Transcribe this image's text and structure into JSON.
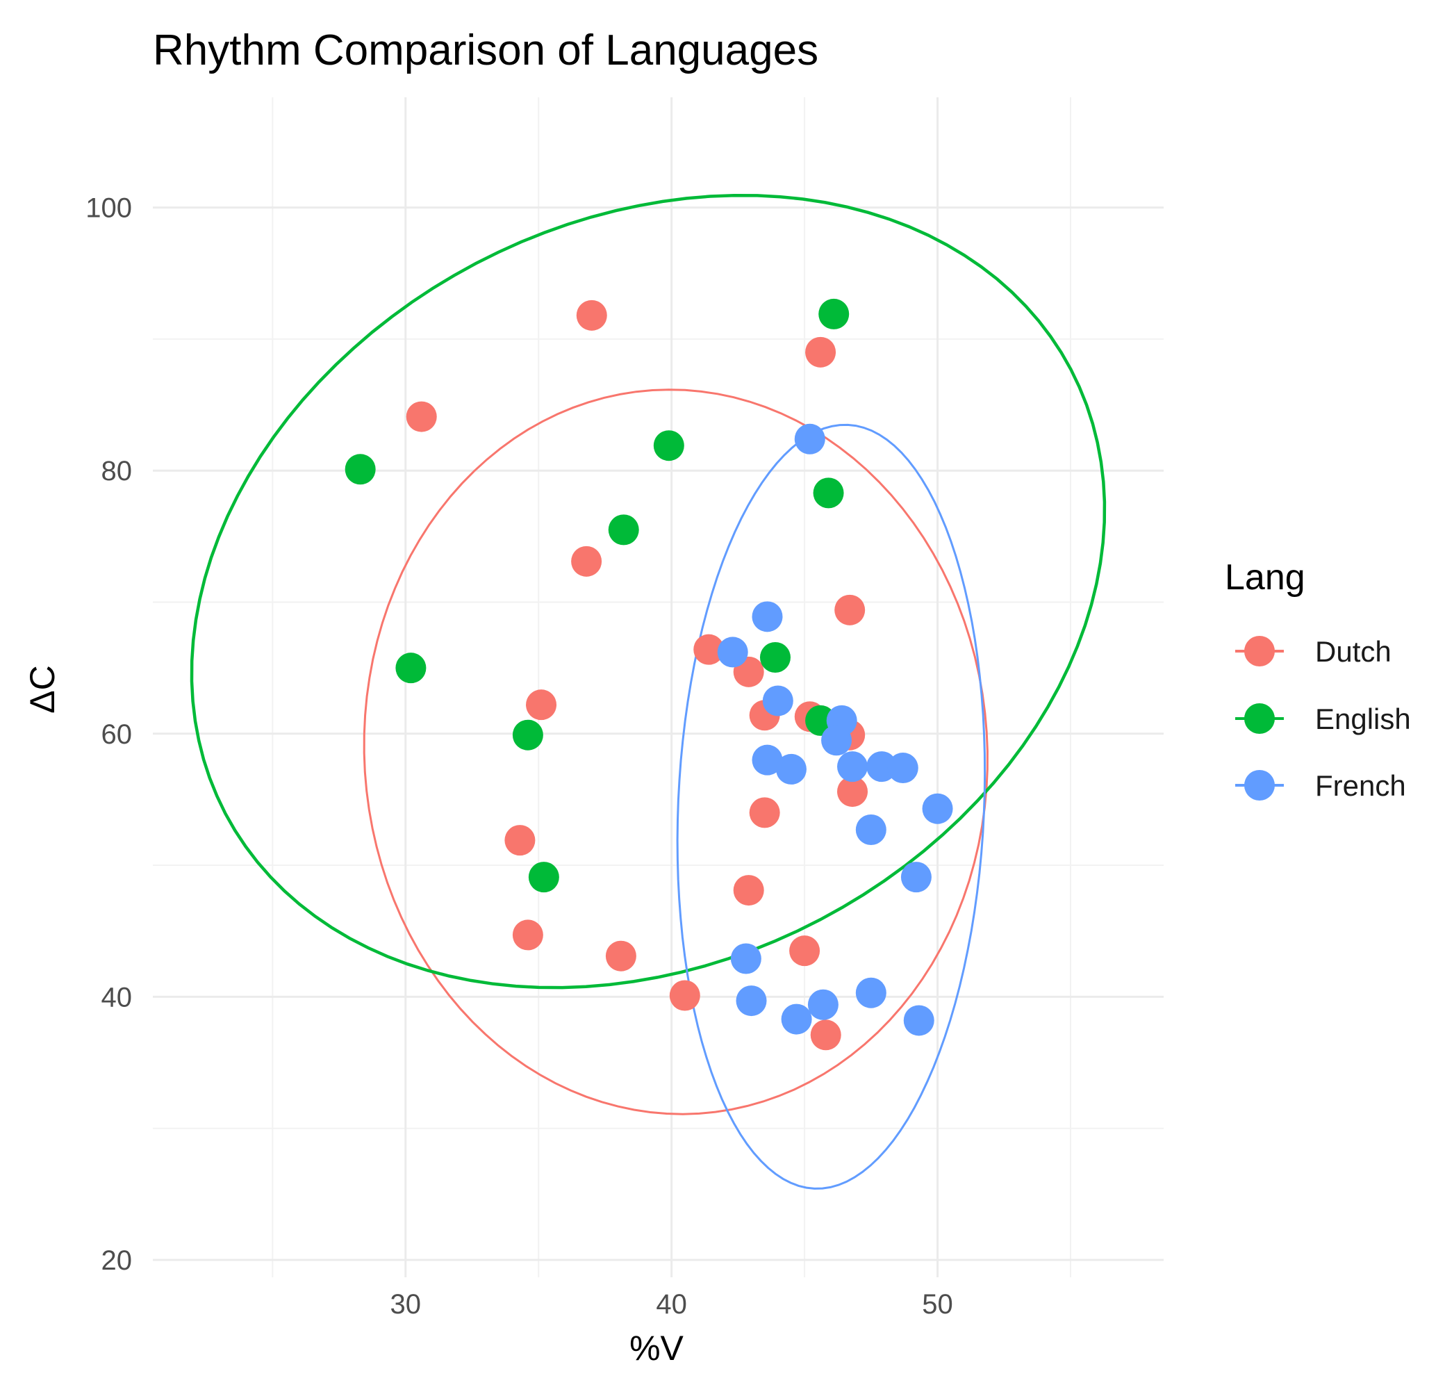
{
  "chart_data": {
    "type": "scatter",
    "title": "Rhythm Comparison of Languages",
    "xlabel": "%V",
    "ylabel": "ΔC",
    "xlim": [
      20.5,
      58.5
    ],
    "ylim": [
      20,
      104
    ],
    "x_ticks": [
      30,
      40,
      50
    ],
    "y_ticks": [
      20,
      40,
      60,
      80,
      100
    ],
    "x_minor": [
      25,
      35,
      45,
      55
    ],
    "y_minor": [
      30,
      50,
      70,
      90
    ],
    "grid": true,
    "legend": {
      "title": "Lang",
      "position": "right"
    },
    "series": [
      {
        "name": "Dutch",
        "color": "#F8766D",
        "points": [
          [
            37.0,
            91.8
          ],
          [
            30.6,
            84.1
          ],
          [
            45.6,
            89.0
          ],
          [
            36.8,
            73.1
          ],
          [
            46.7,
            69.4
          ],
          [
            41.4,
            66.4
          ],
          [
            42.9,
            64.7
          ],
          [
            35.1,
            62.2
          ],
          [
            43.5,
            61.4
          ],
          [
            45.2,
            61.3
          ],
          [
            46.7,
            59.9
          ],
          [
            46.8,
            55.6
          ],
          [
            43.5,
            54.0
          ],
          [
            34.3,
            51.9
          ],
          [
            42.9,
            48.1
          ],
          [
            34.6,
            44.7
          ],
          [
            38.1,
            43.1
          ],
          [
            45.0,
            43.5
          ],
          [
            40.5,
            40.1
          ],
          [
            45.8,
            37.1
          ]
        ],
        "ellipse": {
          "cx": 40.16,
          "cy": 58.62,
          "rx": 11.71,
          "ry": 25.8,
          "angle_deg": 86.3
        }
      },
      {
        "name": "English",
        "color": "#00BA38",
        "points": [
          [
            46.1,
            91.9
          ],
          [
            28.3,
            80.1
          ],
          [
            39.9,
            81.9
          ],
          [
            45.9,
            78.3
          ],
          [
            38.2,
            75.5
          ],
          [
            30.2,
            65.0
          ],
          [
            43.9,
            65.8
          ],
          [
            45.6,
            61.0
          ],
          [
            34.6,
            59.9
          ],
          [
            35.2,
            49.1
          ]
        ],
        "ellipse": {
          "cx": 39.12,
          "cy": 70.81,
          "rx": 17.95,
          "ry": 26.38,
          "angle_deg": 62.3
        }
      },
      {
        "name": "French",
        "color": "#619CFF",
        "points": [
          [
            45.2,
            82.4
          ],
          [
            43.6,
            68.9
          ],
          [
            42.3,
            66.2
          ],
          [
            44.0,
            62.5
          ],
          [
            46.4,
            61.0
          ],
          [
            46.2,
            59.5
          ],
          [
            43.6,
            58.0
          ],
          [
            44.5,
            57.3
          ],
          [
            46.8,
            57.5
          ],
          [
            47.9,
            57.5
          ],
          [
            48.7,
            57.4
          ],
          [
            50.0,
            54.3
          ],
          [
            47.5,
            52.7
          ],
          [
            49.2,
            49.1
          ],
          [
            42.8,
            42.9
          ],
          [
            43.0,
            39.7
          ],
          [
            44.7,
            38.3
          ],
          [
            45.7,
            39.4
          ],
          [
            47.5,
            40.3
          ],
          [
            49.3,
            38.2
          ]
        ],
        "ellipse": {
          "cx": 46.0,
          "cy": 54.45,
          "rx": 5.75,
          "ry": 27.21,
          "angle_deg": 92.5
        }
      }
    ]
  }
}
